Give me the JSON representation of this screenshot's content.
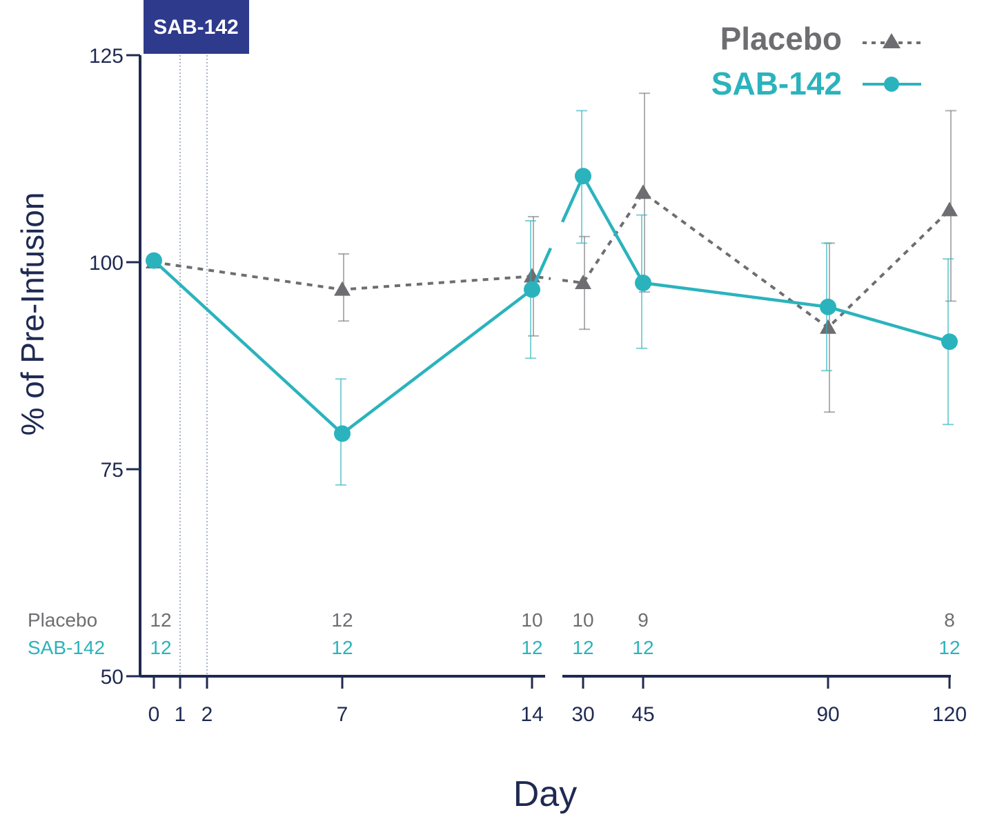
{
  "chart_data": {
    "type": "line",
    "xlabel": "Day",
    "ylabel": "% of Pre-Infusion",
    "ylim": [
      50,
      125
    ],
    "yticks": [
      50,
      75,
      100,
      125
    ],
    "x": [
      0,
      1,
      2,
      7,
      14,
      30,
      45,
      90,
      120
    ],
    "x_tick_labels": [
      "0",
      "1",
      "2",
      "7",
      "14",
      "30",
      "45",
      "90",
      "120"
    ],
    "axis_break_between": [
      14,
      30
    ],
    "dosing_box": {
      "label": "SAB-142",
      "days": [
        1,
        2
      ]
    },
    "series": [
      {
        "name": "Placebo",
        "color": "#6e6e72",
        "style": "dashed",
        "marker": "triangle",
        "points": [
          {
            "x": 0,
            "y": 100,
            "err_low": 100,
            "err_high": 100
          },
          {
            "x": 7,
            "y": 96.7,
            "err_low": 92.9,
            "err_high": 101
          },
          {
            "x": 14,
            "y": 98.3,
            "err_low": 91.1,
            "err_high": 105.5
          },
          {
            "x": 30,
            "y": 97.5,
            "err_low": 91.9,
            "err_high": 103.1
          },
          {
            "x": 45,
            "y": 108.4,
            "err_low": 96.4,
            "err_high": 120.4
          },
          {
            "x": 90,
            "y": 92.1,
            "err_low": 81.9,
            "err_high": 102.3
          },
          {
            "x": 120,
            "y": 106.3,
            "err_low": 95.3,
            "err_high": 118.3
          }
        ]
      },
      {
        "name": "SAB-142",
        "color": "#2bb3bd",
        "style": "solid",
        "marker": "circle",
        "points": [
          {
            "x": 0,
            "y": 100.2,
            "err_low": 100.2,
            "err_high": 100.2
          },
          {
            "x": 7,
            "y": 79.3,
            "err_low": 73.1,
            "err_high": 85.9
          },
          {
            "x": 14,
            "y": 96.7,
            "err_low": 88.4,
            "err_high": 105
          },
          {
            "x": 30,
            "y": 110.4,
            "err_low": 102.3,
            "err_high": 118.3
          },
          {
            "x": 45,
            "y": 97.5,
            "err_low": 89.6,
            "err_high": 105.7
          },
          {
            "x": 90,
            "y": 94.6,
            "err_low": 86.9,
            "err_high": 102.3
          },
          {
            "x": 120,
            "y": 90.4,
            "err_low": 80.4,
            "err_high": 100.4
          }
        ]
      }
    ],
    "n_at_risk": {
      "rows": [
        {
          "label": "Placebo",
          "color": "#6e6e72",
          "counts": [
            {
              "x": 0,
              "n": "12"
            },
            {
              "x": 7,
              "n": "12"
            },
            {
              "x": 14,
              "n": "10"
            },
            {
              "x": 30,
              "n": "10"
            },
            {
              "x": 45,
              "n": "9"
            },
            {
              "x": 120,
              "n": "8"
            }
          ]
        },
        {
          "label": "SAB-142",
          "color": "#2bb3bd",
          "counts": [
            {
              "x": 0,
              "n": "12"
            },
            {
              "x": 7,
              "n": "12"
            },
            {
              "x": 14,
              "n": "12"
            },
            {
              "x": 30,
              "n": "12"
            },
            {
              "x": 45,
              "n": "12"
            },
            {
              "x": 120,
              "n": "12"
            }
          ]
        }
      ]
    },
    "legend": {
      "placement": "top-right",
      "entries": [
        "Placebo",
        "SAB-142"
      ]
    }
  },
  "colors": {
    "axis": "#1f2a52",
    "dosing_box": "#2e3a8c"
  }
}
